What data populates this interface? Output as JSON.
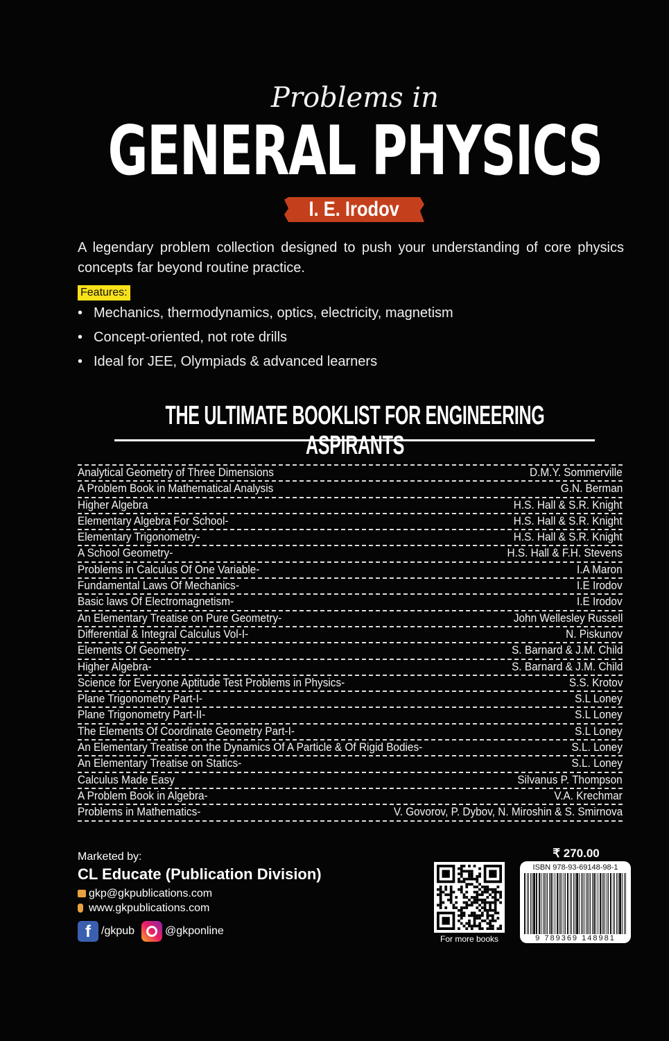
{
  "cover": {
    "pretitle": "Problems in",
    "title": "GENERAL PHYSICS",
    "author": "I. E. Irodov",
    "intro": "A legendary problem collection designed to push your understanding of core physics concepts far beyond routine practice.",
    "features_label": "Features:",
    "features": [
      "Mechanics, thermodynamics, optics, electricity, magnetism",
      "Concept-oriented, not rote drills",
      "Ideal for JEE, Olympiads & advanced learners"
    ],
    "booklist_heading": "THE ULTIMATE BOOKLIST FOR ENGINEERING ASPIRANTS"
  },
  "booklist": [
    {
      "title": "Analytical Geometry of Three Dimensions",
      "author": "D.M.Y. Sommerville"
    },
    {
      "title": "A Problem Book in Mathematical Analysis",
      "author": "G.N. Berman"
    },
    {
      "title": "Higher Algebra",
      "author": "H.S. Hall & S.R. Knight"
    },
    {
      "title": "Elementary Algebra For School-",
      "author": "H.S. Hall & S.R. Knight"
    },
    {
      "title": "Elementary Trigonometry-",
      "author": "H.S. Hall & S.R. Knight"
    },
    {
      "title": "A School Geometry-",
      "author": "H.S. Hall & F.H. Stevens"
    },
    {
      "title": "Problems in Calculus Of One Variable-",
      "author": "I.A Maron"
    },
    {
      "title": "Fundamental Laws Of Mechanics-",
      "author": "I.E Irodov"
    },
    {
      "title": "Basic laws Of Electromagnetism-",
      "author": "I.E Irodov"
    },
    {
      "title": "An Elementary Treatise on Pure Geometry-",
      "author": "John Wellesley Russell"
    },
    {
      "title": "Differential & Integral Calculus Vol-I-",
      "author": "N. Piskunov"
    },
    {
      "title": "Elements Of Geometry-",
      "author": "S. Barnard & J.M. Child"
    },
    {
      "title": "Higher Algebra-",
      "author": "S. Barnard & J.M. Child"
    },
    {
      "title": "Science for Everyone Aptitude Test Problems in Physics-",
      "author": "S.S. Krotov"
    },
    {
      "title": "Plane Trigonometry Part-I-",
      "author": "S.L Loney"
    },
    {
      "title": "Plane Trigonometry Part-II-",
      "author": "S.L Loney"
    },
    {
      "title": "The Elements Of Coordinate Geometry Part-I-",
      "author": "S.L Loney"
    },
    {
      "title": "An Elementary Treatise on the Dynamics Of A Particle & Of Rigid Bodies-",
      "author": "S.L. Loney"
    },
    {
      "title": "An Elementary Treatise on Statics-",
      "author": "S.L. Loney"
    },
    {
      "title": "Calculus Made Easy",
      "author": "Silvanus P. Thompson"
    },
    {
      "title": "A Problem Book in Algebra-",
      "author": "V.A. Krechmar"
    },
    {
      "title": "Problems in Mathematics-",
      "author": "V. Govorov, P. Dybov, N. Miroshin & S. Smirnova"
    }
  ],
  "publisher": {
    "marketed_by": "Marketed by:",
    "name": "CL Educate (Publication Division)",
    "email": "gkp@gkpublications.com",
    "website": "www.gkpublications.com",
    "facebook": "/gkpub",
    "instagram": "@gkponline"
  },
  "qr": {
    "label": "For more books"
  },
  "price": "₹ 270.00",
  "isbn": {
    "label": "ISBN 978-93-69148-98-1",
    "digits": "9 789369 148981"
  },
  "colors": {
    "background": "#050505",
    "author_badge": "#c4401c",
    "features_highlight": "#f7e11a"
  }
}
